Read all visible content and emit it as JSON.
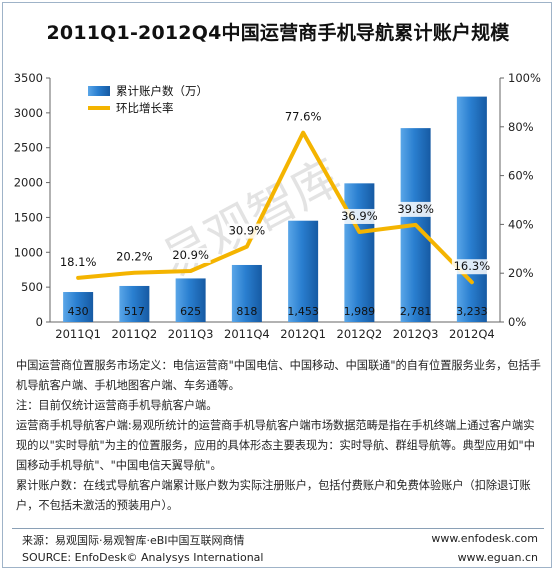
{
  "title": "2011Q1-2012Q4中国运营商手机导航累计账户规模",
  "watermark": "易观智库",
  "chart_data": {
    "type": "bar+line",
    "categories": [
      "2011Q1",
      "2011Q2",
      "2011Q3",
      "2011Q4",
      "2012Q1",
      "2012Q2",
      "2012Q3",
      "2012Q4"
    ],
    "series": [
      {
        "name": "累计账户数（万）",
        "type": "bar",
        "axis": "left",
        "values": [
          430,
          517,
          625,
          818,
          1453,
          1989,
          2781,
          3233
        ],
        "labels": [
          "430",
          "517",
          "625",
          "818",
          "1,453",
          "1,989",
          "2,781",
          "3,233"
        ],
        "color": "#1f6fc0"
      },
      {
        "name": "环比增长率",
        "type": "line",
        "axis": "right",
        "values": [
          18.1,
          20.2,
          20.9,
          30.9,
          77.6,
          36.9,
          39.8,
          16.3
        ],
        "labels": [
          "18.1%",
          "20.2%",
          "20.9%",
          "30.9%",
          "77.6%",
          "36.9%",
          "39.8%",
          "16.3%"
        ],
        "color": "#f4b400"
      }
    ],
    "y_left": {
      "ylim": [
        0,
        3500
      ],
      "ticks": [
        "0",
        "500",
        "1000",
        "1500",
        "2000",
        "2500",
        "3000",
        "3500"
      ]
    },
    "y_right": {
      "ylim": [
        0,
        100
      ],
      "ticks": [
        "0%",
        "20%",
        "40%",
        "60%",
        "80%",
        "100%"
      ]
    },
    "legend_position": "top-left"
  },
  "notes": [
    "中国运营商位置服务市场定义：电信运营商\"中国电信、中国移动、中国联通\"的自有位置服务业务，包括手机导航客户端、手机地图客户端、车务通等。",
    "注：目前仅统计运营商手机导航客户端。",
    "运营商手机导航客户端:易观所统计的运营商手机导航客户端市场数据范畴是指在手机终端上通过客户端实现的以\"实时导航\"为主的位置服务，应用的具体形态主要表现为：实时导航、群组导航等。典型应用如\"中国移动手机导航\"、\"中国电信天翼导航\"。",
    "累计账户数：在线式导航客户端累计账户数为实际注册账户，包括付费账户和免费体验账户（扣除退订账户，不包括未激活的预装用户）。"
  ],
  "footer": {
    "source_cn": "来源：易观国际·易观智库·eBI中国互联网商情",
    "source_en": "SOURCE: EnfoDesk© Analysys International",
    "site1": "www.enfodesk.com",
    "site2": "www.eguan.cn"
  }
}
